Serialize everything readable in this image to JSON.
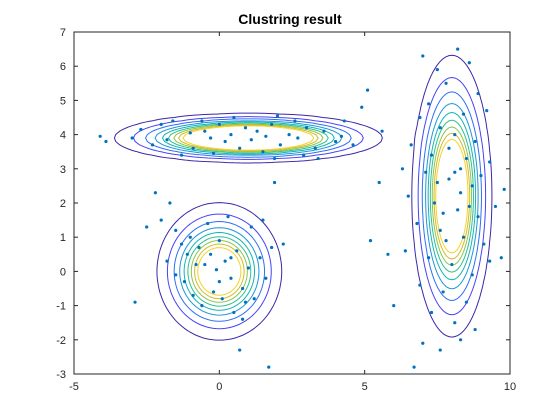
{
  "chart_data": {
    "type": "scatter",
    "title": "Clustring result",
    "xlabel": "",
    "ylabel": "",
    "xlim": [
      -5,
      10
    ],
    "ylim": [
      -3,
      7
    ],
    "xticks": [
      "-5",
      "0",
      "5",
      "10"
    ],
    "yticks": [
      "-3",
      "-2",
      "-1",
      "0",
      "1",
      "2",
      "3",
      "4",
      "5",
      "6",
      "7"
    ],
    "grid": false,
    "legend": "none",
    "point_color": "#0072BD",
    "contour_colors": [
      "#3E26A8",
      "#4743F6",
      "#2D6FF7",
      "#1E96D8",
      "#13B3B5",
      "#2FC08E",
      "#8BC64C",
      "#D2BA2E",
      "#F5D225"
    ],
    "clusters": [
      {
        "center": [
          0.0,
          0.0
        ],
        "sd": [
          0.8,
          0.75
        ],
        "n": 60
      },
      {
        "center": [
          1.0,
          3.9
        ],
        "sd": [
          1.6,
          0.25
        ],
        "n": 70
      },
      {
        "center": [
          8.0,
          2.2
        ],
        "sd": [
          0.5,
          1.5
        ],
        "n": 90
      }
    ],
    "series": [
      {
        "values": [
          [
            -4.1,
            3.95
          ],
          [
            -3.9,
            3.8
          ],
          [
            -3.0,
            3.9
          ],
          [
            -2.3,
            3.7
          ],
          [
            -2.0,
            4.3
          ],
          [
            -1.6,
            4.4
          ],
          [
            -1.3,
            3.4
          ],
          [
            -0.9,
            3.6
          ],
          [
            -0.5,
            4.1
          ],
          [
            -0.3,
            3.9
          ],
          [
            0.0,
            4.3
          ],
          [
            0.2,
            3.8
          ],
          [
            0.4,
            4.0
          ],
          [
            0.7,
            3.6
          ],
          [
            0.9,
            4.2
          ],
          [
            1.1,
            3.85
          ],
          [
            1.3,
            4.1
          ],
          [
            1.5,
            3.5
          ],
          [
            1.8,
            4.3
          ],
          [
            2.1,
            3.7
          ],
          [
            2.4,
            4.0
          ],
          [
            2.7,
            3.9
          ],
          [
            3.0,
            4.2
          ],
          [
            3.3,
            3.6
          ],
          [
            3.6,
            4.1
          ],
          [
            4.0,
            3.8
          ],
          [
            4.3,
            4.4
          ],
          [
            4.6,
            3.7
          ],
          [
            -1.8,
            3.85
          ],
          [
            -1.0,
            4.05
          ],
          [
            0.5,
            4.5
          ],
          [
            2.0,
            4.55
          ],
          [
            3.4,
            3.3
          ],
          [
            -2.7,
            4.15
          ],
          [
            1.6,
            3.95
          ],
          [
            -0.2,
            3.45
          ],
          [
            2.9,
            3.4
          ],
          [
            -0.6,
            4.4
          ],
          [
            1.9,
            3.3
          ],
          [
            4.2,
            3.95
          ],
          [
            -2.2,
            2.3
          ],
          [
            -2.0,
            1.5
          ],
          [
            -1.5,
            1.2
          ],
          [
            -1.3,
            0.8
          ],
          [
            -1.0,
            1.0
          ],
          [
            -0.7,
            0.7
          ],
          [
            -0.5,
            0.2
          ],
          [
            -0.3,
            0.5
          ],
          [
            0.0,
            0.9
          ],
          [
            0.2,
            0.3
          ],
          [
            0.4,
            -0.2
          ],
          [
            0.6,
            0.6
          ],
          [
            0.8,
            -0.5
          ],
          [
            1.0,
            0.1
          ],
          [
            1.2,
            -0.8
          ],
          [
            1.4,
            0.4
          ],
          [
            -1.2,
            -0.3
          ],
          [
            -0.9,
            -0.7
          ],
          [
            -0.6,
            -1.0
          ],
          [
            -0.2,
            -0.6
          ],
          [
            0.1,
            -0.8
          ],
          [
            0.5,
            -1.2
          ],
          [
            -1.5,
            -0.1
          ],
          [
            1.6,
            -0.2
          ],
          [
            1.1,
            1.3
          ],
          [
            -0.4,
            1.4
          ],
          [
            0.3,
            1.6
          ],
          [
            0.8,
            -1.4
          ],
          [
            -1.8,
            0.3
          ],
          [
            1.8,
            0.7
          ],
          [
            1.5,
            1.5
          ],
          [
            -2.9,
            -0.9
          ],
          [
            0.7,
            -2.3
          ],
          [
            1.7,
            -2.8
          ],
          [
            -0.1,
            0.05
          ],
          [
            0.4,
            0.4
          ],
          [
            -0.8,
            0.2
          ],
          [
            0.9,
            -0.9
          ],
          [
            -1.1,
            0.5
          ],
          [
            0.0,
            -0.3
          ],
          [
            7.0,
            6.3
          ],
          [
            7.5,
            5.9
          ],
          [
            8.2,
            6.5
          ],
          [
            8.6,
            6.1
          ],
          [
            7.8,
            5.5
          ],
          [
            8.9,
            5.2
          ],
          [
            7.2,
            4.9
          ],
          [
            6.9,
            4.5
          ],
          [
            8.4,
            4.6
          ],
          [
            9.2,
            4.7
          ],
          [
            7.6,
            4.2
          ],
          [
            8.1,
            4.0
          ],
          [
            8.8,
            3.8
          ],
          [
            6.6,
            3.7
          ],
          [
            7.3,
            3.4
          ],
          [
            8.5,
            3.3
          ],
          [
            9.3,
            3.2
          ],
          [
            6.3,
            3.0
          ],
          [
            7.1,
            2.9
          ],
          [
            7.9,
            2.7
          ],
          [
            8.7,
            2.5
          ],
          [
            9.0,
            2.8
          ],
          [
            6.5,
            2.2
          ],
          [
            7.4,
            2.0
          ],
          [
            8.2,
            1.8
          ],
          [
            8.9,
            1.6
          ],
          [
            9.5,
            1.9
          ],
          [
            6.8,
            1.4
          ],
          [
            7.6,
            1.2
          ],
          [
            8.4,
            1.0
          ],
          [
            9.1,
            0.8
          ],
          [
            6.4,
            0.6
          ],
          [
            7.2,
            0.4
          ],
          [
            8.0,
            0.2
          ],
          [
            8.7,
            -0.1
          ],
          [
            9.3,
            0.3
          ],
          [
            6.9,
            -0.4
          ],
          [
            7.7,
            -0.6
          ],
          [
            8.5,
            -0.9
          ],
          [
            7.3,
            -1.2
          ],
          [
            8.1,
            -1.5
          ],
          [
            8.8,
            -1.7
          ],
          [
            7.0,
            -2.1
          ],
          [
            7.6,
            -2.3
          ],
          [
            8.3,
            -2.0
          ],
          [
            6.7,
            -2.8
          ],
          [
            9.7,
            0.4
          ],
          [
            9.8,
            2.4
          ],
          [
            7.9,
            3.6
          ],
          [
            8.3,
            2.3
          ],
          [
            7.7,
            1.7
          ],
          [
            8.1,
            2.9
          ],
          [
            7.5,
            2.6
          ],
          [
            8.6,
            1.9
          ],
          [
            7.8,
            0.9
          ],
          [
            8.3,
            3.0
          ],
          [
            5.2,
            0.9
          ],
          [
            5.8,
            0.5
          ],
          [
            6.0,
            -1.0
          ],
          [
            5.5,
            2.6
          ],
          [
            5.6,
            4.1
          ],
          [
            4.9,
            4.8
          ],
          [
            5.1,
            5.3
          ],
          [
            2.6,
            4.4
          ],
          [
            -2.5,
            1.3
          ],
          [
            -1.7,
            2.0
          ],
          [
            1.9,
            2.6
          ],
          [
            2.2,
            0.8
          ]
        ]
      }
    ]
  }
}
